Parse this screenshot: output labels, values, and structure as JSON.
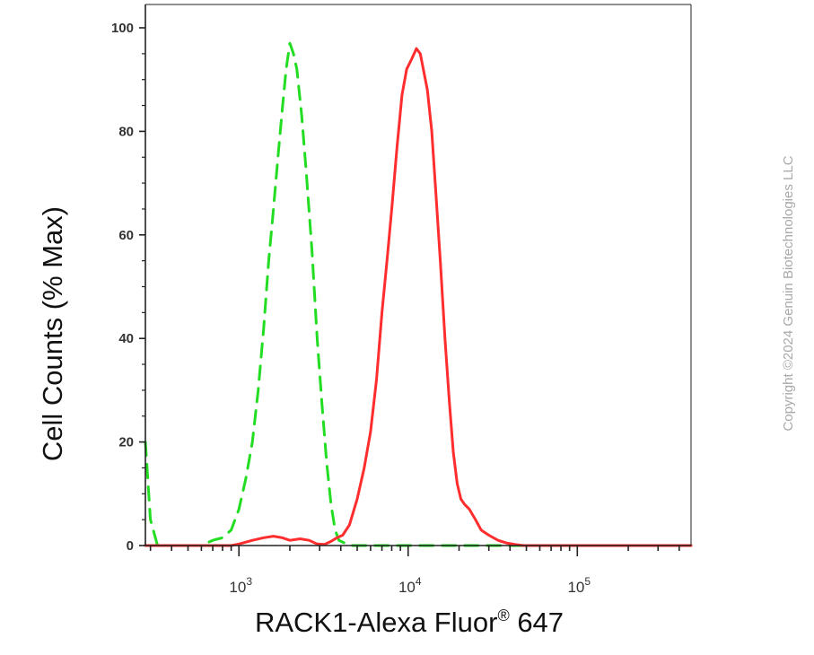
{
  "chart_data": {
    "type": "line",
    "xlabel": "RACK1-Alexa Fluor",
    "xlabel_sup": "®",
    "xlabel_suffix": " 647",
    "ylabel": "Cell Counts (% Max)",
    "x_scale": "log",
    "xlim": [
      280,
      470000
    ],
    "ylim": [
      0,
      100
    ],
    "y_ticks": [
      0,
      20,
      40,
      60,
      80,
      100
    ],
    "x_ticks": [
      {
        "value": 1000,
        "base": "10",
        "exp": "3"
      },
      {
        "value": 10000,
        "base": "10",
        "exp": "4"
      },
      {
        "value": 100000,
        "base": "10",
        "exp": "5"
      }
    ],
    "grid": false,
    "series": [
      {
        "style": "dashed",
        "color": "#22dd22",
        "x": [
          280,
          300,
          330,
          400,
          500,
          600,
          700,
          800,
          900,
          1000,
          1100,
          1200,
          1300,
          1400,
          1500,
          1600,
          1700,
          1800,
          1900,
          2000,
          2100,
          2200,
          2350,
          2500,
          2700,
          2900,
          3100,
          3300,
          3500,
          3700,
          3900,
          4200,
          4600,
          5000,
          5500,
          7000,
          470000
        ],
        "y": [
          20,
          5,
          0,
          0,
          0,
          0,
          1,
          1.5,
          3,
          7,
          13,
          20,
          30,
          42,
          55,
          65,
          75,
          84,
          92,
          97,
          95,
          92,
          83,
          72,
          57,
          40,
          27,
          16,
          8,
          3,
          1,
          0.5,
          0,
          0,
          0,
          0,
          0
        ]
      },
      {
        "style": "solid",
        "color": "#ff2d2d",
        "x": [
          280,
          700,
          900,
          1000,
          1200,
          1400,
          1600,
          1800,
          2000,
          2300,
          2600,
          2900,
          3200,
          3500,
          3800,
          4100,
          4500,
          5000,
          5500,
          6000,
          6500,
          7000,
          7500,
          8000,
          8600,
          9200,
          9800,
          10500,
          11200,
          11800,
          12300,
          13000,
          13800,
          14600,
          15500,
          16500,
          17500,
          18500,
          19500,
          20500,
          21500,
          23000,
          25000,
          27000,
          30000,
          34000,
          38000,
          43000,
          48000,
          55000,
          70000,
          100000,
          470000
        ],
        "y": [
          0,
          0,
          0,
          0.3,
          1,
          1.5,
          1.8,
          1.5,
          1,
          1.3,
          1,
          0.3,
          0.2,
          0.8,
          1.5,
          2,
          4,
          9,
          15,
          22,
          32,
          45,
          55,
          65,
          77,
          87,
          92,
          94,
          96,
          95,
          92,
          88,
          80,
          68,
          55,
          40,
          28,
          18,
          12,
          9,
          8,
          7,
          5,
          3,
          2,
          1,
          0.5,
          0.2,
          0,
          0,
          0,
          0,
          0
        ]
      }
    ]
  },
  "copyright": "Copyright ©2024 Genuin Biotechnologies LLC"
}
